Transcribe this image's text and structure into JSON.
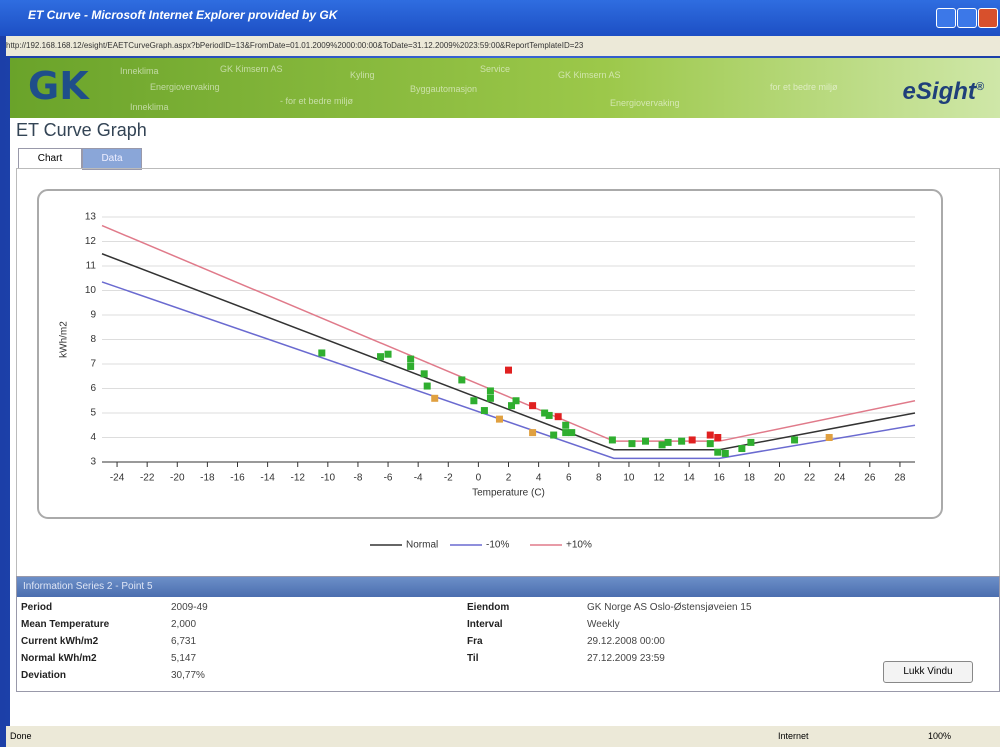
{
  "window": {
    "title": "ET Curve - Microsoft Internet Explorer provided by GK",
    "url": "http://192.168.168.12/esight/EAETCurveGraph.aspx?bPeriodID=13&FromDate=01.01.2009%2000:00:00&ToDate=31.12.2009%2023:59:00&ReportTemplateID=23"
  },
  "banner": {
    "logo": "GK",
    "brand": "eSight",
    "brand_mark": "®",
    "watermark": [
      "Inneklima",
      "GK Kimsern AS",
      "Kyling",
      "Service",
      "GK Kimsern AS",
      "Energiovervaking",
      "- for et bedre miljø",
      "Byggautomasjon",
      "Inneklima",
      "Energiovervaking",
      "for et bedre miljø"
    ]
  },
  "heading": "ET Curve Graph",
  "tabs": [
    "Chart",
    "Data"
  ],
  "chart_data": {
    "type": "scatter",
    "xlabel": "Temperature (C)",
    "ylabel": "kWh/m2",
    "xlim": [
      -25,
      29
    ],
    "ylim": [
      3,
      13
    ],
    "xticks": [
      -24,
      -22,
      -20,
      -18,
      -16,
      -14,
      -12,
      -10,
      -8,
      -6,
      -4,
      -2,
      0,
      2,
      4,
      6,
      8,
      10,
      12,
      14,
      16,
      18,
      20,
      22,
      24,
      26,
      28
    ],
    "yticks": [
      3,
      4,
      5,
      6,
      7,
      8,
      9,
      10,
      11,
      12,
      13
    ],
    "grid": true,
    "series": [
      {
        "name": "Normal",
        "type": "line",
        "color": "#333333",
        "x": [
          -25,
          9,
          16,
          29
        ],
        "values": [
          11.5,
          3.5,
          3.5,
          5.0
        ]
      },
      {
        "name": "-10%",
        "type": "line",
        "color": "#6a6ad0",
        "x": [
          -25,
          9,
          16,
          29
        ],
        "values": [
          10.35,
          3.15,
          3.15,
          4.5
        ]
      },
      {
        "name": "+10%",
        "type": "line",
        "color": "#e07a8a",
        "x": [
          -25,
          9,
          16,
          29
        ],
        "values": [
          12.65,
          3.85,
          3.85,
          5.5
        ]
      },
      {
        "type": "scatter",
        "color": "#2fae2f",
        "x": [
          -10.4,
          -6.5,
          -6,
          -4.5,
          -4.5,
          -3.6,
          -3.4,
          -1.1,
          -0.3,
          0.4,
          0.8,
          0.8,
          2.2,
          2.5,
          4.4,
          4.7,
          5.0,
          5.8,
          5.8,
          6.2,
          8.9,
          10.2,
          11.1,
          12.2,
          12.6,
          13.5,
          15.4,
          15.9,
          16.4,
          17.5,
          18.1,
          21
        ],
        "values": [
          7.45,
          7.3,
          7.4,
          7.2,
          6.9,
          6.6,
          6.1,
          6.35,
          5.5,
          5.1,
          5.9,
          5.6,
          5.3,
          5.5,
          5.0,
          4.9,
          4.1,
          4.5,
          4.2,
          4.2,
          3.9,
          3.75,
          3.85,
          3.7,
          3.8,
          3.85,
          3.75,
          3.4,
          3.35,
          3.55,
          3.8,
          3.9
        ]
      },
      {
        "type": "scatter",
        "color": "#e02020",
        "x": [
          2,
          3.6,
          5.3,
          14.2,
          15.4,
          15.9
        ],
        "values": [
          6.75,
          5.3,
          4.85,
          3.9,
          4.1,
          4.0
        ]
      },
      {
        "type": "scatter",
        "color": "#e0a040",
        "x": [
          -2.9,
          1.4,
          3.6,
          23.3
        ],
        "values": [
          5.6,
          4.75,
          4.2,
          4.0
        ]
      }
    ]
  },
  "info": {
    "title": "Information Series 2 - Point 5",
    "left": [
      [
        "Period",
        "2009-49"
      ],
      [
        "Mean Temperature",
        "2,000"
      ],
      [
        "Current kWh/m2",
        "6,731"
      ],
      [
        "Normal kWh/m2",
        "5,147"
      ],
      [
        "Deviation",
        "30,77%"
      ]
    ],
    "right": [
      [
        "Eiendom",
        "GK Norge AS Oslo-Østensjøveien 15"
      ],
      [
        "Interval",
        "Weekly"
      ],
      [
        "Fra",
        "29.12.2008 00:00"
      ],
      [
        "Til",
        "27.12.2009 23:59"
      ]
    ],
    "button": "Lukk Vindu"
  },
  "status": {
    "left": "Done",
    "zone": "Internet",
    "zoom": "100%"
  }
}
